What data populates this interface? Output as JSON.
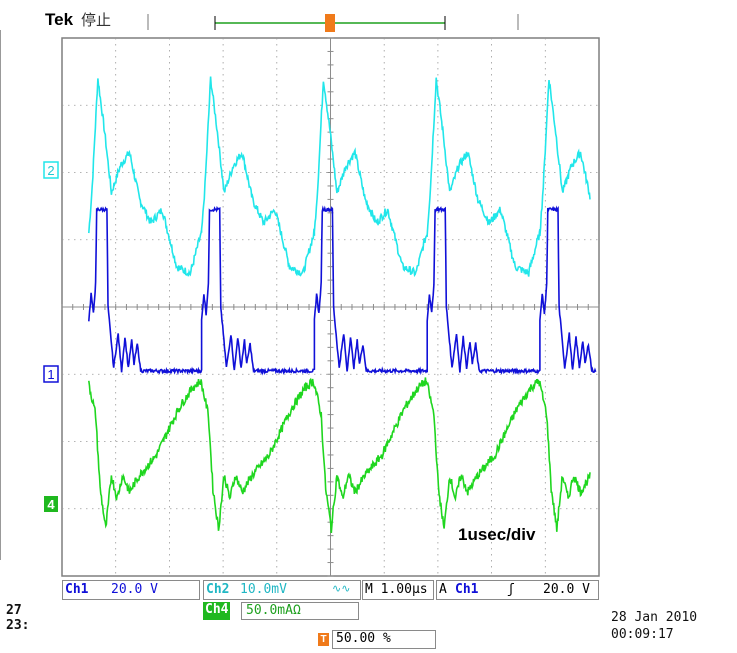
{
  "header": {
    "brand": "Tek",
    "status": "停止",
    "trigger_marker": "T"
  },
  "annotation": "1usec/div",
  "channels": [
    {
      "id": "ch2",
      "marker": "2",
      "color": "#21e6ea"
    },
    {
      "id": "ch1",
      "marker": "1",
      "color": "#1010d8"
    },
    {
      "id": "ch4",
      "marker": "4",
      "color": "#1fd61f"
    }
  ],
  "settings": {
    "ch1_label": "Ch1",
    "ch1_scale": "20.0 V",
    "ch2_label": "Ch2",
    "ch2_scale": "10.0mV",
    "ch2_suffix": "∿∿",
    "ch4_label": "Ch4",
    "ch4_scale": "50.0mAΩ",
    "timebase": "M 1.00μs",
    "trigger_mode": "A",
    "trigger_source": "Ch1",
    "trigger_slope": "ʃ",
    "trigger_level": "20.0 V",
    "trigger_position": "50.00 %"
  },
  "datetime": {
    "date": "28 Jan  2010",
    "time": "00:09:17"
  },
  "left_fragment": {
    "line1": "27",
    "line2": "23:"
  },
  "chart_data": {
    "type": "line",
    "title": "",
    "xlabel": "",
    "ylabel": "",
    "xlim": [
      -5,
      5
    ],
    "ylim": [
      -4,
      4
    ],
    "grid": true,
    "period": 2.1,
    "x_start": -4.5,
    "series": [
      {
        "name": "Ch2",
        "color": "#21e6ea",
        "shape": [
          [
            0.0,
            1.1
          ],
          [
            0.03,
            1.8
          ],
          [
            0.08,
            3.4
          ],
          [
            0.14,
            2.6
          ],
          [
            0.2,
            1.7
          ],
          [
            0.28,
            2.1
          ],
          [
            0.36,
            2.3
          ],
          [
            0.45,
            1.6
          ],
          [
            0.55,
            1.25
          ],
          [
            0.65,
            1.45
          ],
          [
            0.78,
            0.6
          ],
          [
            0.9,
            0.5
          ],
          [
            0.98,
            1.0
          ],
          [
            1.0,
            1.1
          ]
        ]
      },
      {
        "name": "Ch1",
        "color": "#1010d8",
        "shape": [
          [
            0.0,
            -0.2
          ],
          [
            0.02,
            0.2
          ],
          [
            0.04,
            -0.1
          ],
          [
            0.06,
            0.35
          ],
          [
            0.07,
            1.45
          ],
          [
            0.16,
            1.45
          ],
          [
            0.17,
            0.0
          ],
          [
            0.22,
            -0.9
          ],
          [
            0.26,
            -0.4
          ],
          [
            0.29,
            -0.95
          ],
          [
            0.32,
            -0.45
          ],
          [
            0.35,
            -0.9
          ],
          [
            0.38,
            -0.5
          ],
          [
            0.4,
            -0.85
          ],
          [
            0.43,
            -0.55
          ],
          [
            0.46,
            -0.95
          ],
          [
            0.5,
            -0.95
          ],
          [
            1.0,
            -0.95
          ]
        ]
      },
      {
        "name": "Ch4",
        "color": "#1fd61f",
        "shape": [
          [
            0.0,
            -1.15
          ],
          [
            0.06,
            -1.6
          ],
          [
            0.1,
            -2.7
          ],
          [
            0.15,
            -3.3
          ],
          [
            0.2,
            -2.5
          ],
          [
            0.25,
            -2.85
          ],
          [
            0.3,
            -2.5
          ],
          [
            0.36,
            -2.75
          ],
          [
            0.45,
            -2.5
          ],
          [
            0.6,
            -2.2
          ],
          [
            0.8,
            -1.5
          ],
          [
            0.92,
            -1.2
          ],
          [
            0.99,
            -1.1
          ]
        ]
      }
    ]
  }
}
